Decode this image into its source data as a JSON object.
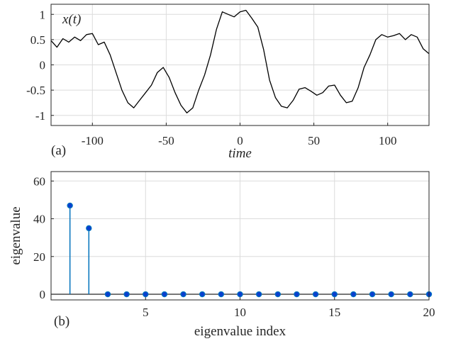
{
  "chart_data": [
    {
      "type": "line",
      "panel_label": "(a)",
      "legend_text": "x(t)",
      "xlabel": "time",
      "ylabel": "",
      "xlim": [
        -128,
        128
      ],
      "ylim": [
        -1.2,
        1.2
      ],
      "xticks": [
        -100,
        -50,
        0,
        50,
        100
      ],
      "xtick_labels": [
        "-100",
        "-50",
        "0",
        "50",
        "100"
      ],
      "yticks": [
        -1,
        -0.5,
        0,
        0.5,
        1
      ],
      "ytick_labels": [
        "-1",
        "-0.5",
        "0",
        "0.5",
        "1"
      ],
      "grid": true,
      "line_color": "#000000",
      "x": [
        -128,
        -124,
        -120,
        -116,
        -112,
        -108,
        -104,
        -100,
        -96,
        -92,
        -88,
        -84,
        -80,
        -76,
        -72,
        -68,
        -64,
        -60,
        -56,
        -52,
        -48,
        -44,
        -40,
        -36,
        -32,
        -28,
        -24,
        -20,
        -16,
        -12,
        -8,
        -4,
        0,
        4,
        8,
        12,
        16,
        20,
        24,
        28,
        32,
        36,
        40,
        44,
        48,
        52,
        56,
        60,
        64,
        68,
        72,
        76,
        80,
        84,
        88,
        92,
        96,
        100,
        104,
        108,
        112,
        116,
        120,
        124,
        128
      ],
      "values": [
        0.48,
        0.35,
        0.52,
        0.45,
        0.55,
        0.48,
        0.6,
        0.62,
        0.4,
        0.45,
        0.2,
        -0.15,
        -0.5,
        -0.75,
        -0.85,
        -0.7,
        -0.55,
        -0.4,
        -0.15,
        -0.05,
        -0.25,
        -0.55,
        -0.8,
        -0.95,
        -0.85,
        -0.5,
        -0.2,
        0.2,
        0.7,
        1.05,
        1.0,
        0.95,
        1.05,
        1.08,
        0.92,
        0.75,
        0.3,
        -0.3,
        -0.65,
        -0.82,
        -0.85,
        -0.7,
        -0.48,
        -0.45,
        -0.52,
        -0.6,
        -0.55,
        -0.42,
        -0.4,
        -0.6,
        -0.75,
        -0.72,
        -0.45,
        -0.05,
        0.2,
        0.5,
        0.6,
        0.55,
        0.58,
        0.62,
        0.5,
        0.6,
        0.55,
        0.32,
        0.22
      ]
    },
    {
      "type": "stem",
      "panel_label": "(b)",
      "xlabel": "eigenvalue index",
      "ylabel": "eigenvalue",
      "xlim": [
        0,
        20
      ],
      "ylim": [
        -3,
        65
      ],
      "xticks": [
        5,
        10,
        15,
        20
      ],
      "xtick_labels": [
        "5",
        "10",
        "15",
        "20"
      ],
      "yticks": [
        0,
        20,
        40,
        60
      ],
      "ytick_labels": [
        "0",
        "20",
        "40",
        "60"
      ],
      "grid": true,
      "stem_color": "#0072bd",
      "x": [
        1,
        2,
        3,
        4,
        5,
        6,
        7,
        8,
        9,
        10,
        11,
        12,
        13,
        14,
        15,
        16,
        17,
        18,
        19,
        20
      ],
      "values": [
        47,
        35,
        0,
        0,
        0,
        0,
        0,
        0,
        0,
        0,
        0,
        0,
        0,
        0,
        0,
        0,
        0,
        0,
        0,
        0
      ]
    }
  ]
}
